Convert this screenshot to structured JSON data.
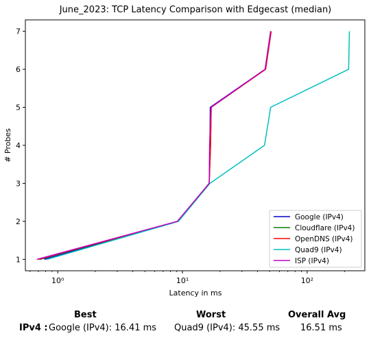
{
  "chart_data": {
    "type": "line",
    "title": "June_2023: TCP Latency Comparison with Edgecast (median)",
    "xlabel": "Latency in ms",
    "ylabel": "# Probes",
    "xscale": "log",
    "xlim": [
      0.55,
      290
    ],
    "ylim": [
      0.7,
      7.3
    ],
    "x_ticks": [
      1,
      10,
      100
    ],
    "x_tick_labels": [
      "10⁰",
      "10¹",
      "10²"
    ],
    "y_ticks": [
      1,
      2,
      3,
      4,
      5,
      6,
      7
    ],
    "y_tick_labels": [
      "1",
      "2",
      "3",
      "4",
      "5",
      "6",
      "7"
    ],
    "grid": false,
    "legend_position": "lower-right",
    "series": [
      {
        "name": "Google (IPv4)",
        "color": "#0000cc",
        "x": [
          0.78,
          9.2,
          16.4,
          16.6,
          16.7,
          46.0,
          51.0
        ],
        "y": [
          1,
          2,
          3,
          4,
          5,
          6,
          7
        ]
      },
      {
        "name": "Cloudflare (IPv4)",
        "color": "#008000",
        "x": [
          0.72,
          9.2,
          16.4,
          16.8,
          17.0,
          46.0,
          51.0
        ],
        "y": [
          1,
          2,
          3,
          4,
          5,
          6,
          7
        ]
      },
      {
        "name": "OpenDNS (IPv4)",
        "color": "#ff0000",
        "x": [
          0.7,
          9.2,
          16.4,
          16.8,
          17.0,
          46.5,
          51.5
        ],
        "y": [
          1,
          2,
          3,
          4,
          5,
          6,
          7
        ]
      },
      {
        "name": "Quad9 (IPv4)",
        "color": "#00bfbf",
        "x": [
          0.82,
          9.3,
          16.6,
          45.5,
          51.0,
          215.0,
          218.0
        ],
        "y": [
          1,
          2,
          3,
          4,
          5,
          6,
          7
        ]
      },
      {
        "name": "ISP (IPv4)",
        "color": "#bf00bf",
        "x": [
          0.68,
          9.1,
          16.4,
          16.5,
          16.9,
          46.0,
          51.0
        ],
        "y": [
          1,
          2,
          3,
          4,
          5,
          6,
          7
        ]
      }
    ]
  },
  "summary": {
    "best_header": "Best",
    "worst_header": "Worst",
    "avg_header": "Overall Avg",
    "row_label": "IPv4 :",
    "best_value": "Google (IPv4): 16.41 ms",
    "worst_value": "Quad9 (IPv4): 45.55 ms",
    "avg_value": "16.51 ms"
  }
}
